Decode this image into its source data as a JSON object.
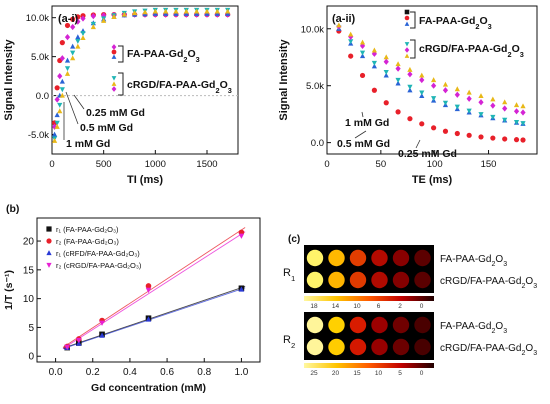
{
  "chart_data": [
    {
      "id": "a-i",
      "type": "scatter",
      "panel_label": "(a-i)",
      "xlabel": "TI (ms)",
      "ylabel": "Signal Intensity",
      "xlim": [
        0,
        1800
      ],
      "ylim": [
        -7500,
        11500
      ],
      "xticks": [
        0,
        500,
        1000,
        1500
      ],
      "yticks": [
        {
          "v": -5000,
          "t": "-5.0k"
        },
        {
          "v": 0,
          "t": "0.0"
        },
        {
          "v": 5000,
          "t": "5.0k"
        },
        {
          "v": 10000,
          "t": "10.0k"
        }
      ],
      "legend": [
        {
          "label": "FA-PAA-Gd",
          "sub": "2",
          "label2": "O",
          "sub2": "3"
        },
        {
          "label": "cRGD/FA-PAA-Gd",
          "sub": "2",
          "label2": "O",
          "sub2": "3"
        }
      ],
      "annotations": [
        "0.25 mM Gd",
        "0.5 mM Gd",
        "1 mM Gd"
      ],
      "series": [
        {
          "color": "#e8202a",
          "marker": "circle",
          "x": [
            25,
            50,
            75,
            100,
            150,
            200,
            250,
            300,
            400,
            500,
            600,
            700,
            800,
            900,
            1000,
            1100,
            1200,
            1300,
            1400,
            1500,
            1600,
            1700
          ],
          "y": [
            -3500,
            1000,
            4500,
            6800,
            9000,
            9800,
            10100,
            10250,
            10350,
            10400,
            10400,
            10400,
            10400,
            10400,
            10400,
            10400,
            10400,
            10400,
            10400,
            10400,
            10400,
            10400
          ]
        },
        {
          "color": "#d424d4",
          "marker": "diamond",
          "x": [
            25,
            50,
            75,
            100,
            150,
            200,
            250,
            300,
            400,
            500,
            600,
            700,
            800,
            900,
            1000,
            1100,
            1200,
            1300,
            1400,
            1500,
            1600,
            1700
          ],
          "y": [
            -4000,
            -500,
            2500,
            4800,
            7500,
            8800,
            9500,
            9900,
            10200,
            10300,
            10350,
            10400,
            10400,
            10400,
            10400,
            10400,
            10400,
            10400,
            10400,
            10400,
            10400,
            10400
          ]
        },
        {
          "color": "#2a63d6",
          "marker": "triangle",
          "x": [
            25,
            50,
            75,
            100,
            150,
            200,
            250,
            300,
            400,
            500,
            600,
            700,
            800,
            900,
            1000,
            1100,
            1200,
            1300,
            1400,
            1500,
            1600,
            1700
          ],
          "y": [
            -5000,
            -2500,
            0,
            1800,
            4500,
            6300,
            7500,
            8300,
            9300,
            9800,
            10100,
            10300,
            10400,
            10450,
            10500,
            10500,
            10500,
            10500,
            10500,
            10500,
            10500,
            10500
          ]
        },
        {
          "color": "#1fb5b5",
          "marker": "triangle-down",
          "x": [
            25,
            50,
            75,
            100,
            150,
            200,
            250,
            300,
            400,
            500,
            600,
            700,
            800,
            900,
            1000,
            1100,
            1200,
            1300,
            1400,
            1500,
            1600,
            1700
          ],
          "y": [
            -5500,
            -3500,
            -1200,
            800,
            3500,
            5500,
            7000,
            8000,
            9200,
            9900,
            10300,
            10600,
            10800,
            10900,
            11000,
            11000,
            11000,
            11000,
            11000,
            11000,
            11000,
            11000
          ]
        },
        {
          "color": "#e8b818",
          "marker": "triangle",
          "x": [
            25,
            50,
            75,
            100,
            150,
            200,
            250,
            300,
            400,
            500,
            600,
            700,
            800,
            900,
            1000,
            1100,
            1200,
            1300,
            1400,
            1500,
            1600,
            1700
          ],
          "y": [
            -5800,
            -4000,
            -2000,
            0,
            2800,
            4800,
            6300,
            7400,
            8800,
            9600,
            10100,
            10400,
            10600,
            10700,
            10800,
            10800,
            10800,
            10800,
            10800,
            10800,
            10800,
            10800
          ]
        }
      ]
    },
    {
      "id": "a-ii",
      "type": "scatter",
      "panel_label": "(a-ii)",
      "xlabel": "TE (ms)",
      "ylabel": "Signal Intensity",
      "xlim": [
        0,
        195
      ],
      "ylim": [
        -1000,
        12000
      ],
      "xticks": [
        0,
        50,
        100,
        150
      ],
      "yticks": [
        {
          "v": 0,
          "t": "0.0"
        },
        {
          "v": 5000,
          "t": "5.0k"
        },
        {
          "v": 10000,
          "t": "10.0k"
        }
      ],
      "legend": [
        {
          "label": "FA-PAA-Gd",
          "sub": "2",
          "label2": "O",
          "sub2": "3"
        },
        {
          "label": "cRGD/FA-PAA-Gd",
          "sub": "2",
          "label2": "O",
          "sub2": "3"
        }
      ],
      "annotations": [
        "1 mM Gd",
        "0.5 mM Gd",
        "0.25 mM Gd"
      ],
      "series": [
        {
          "color": "#e8202a",
          "marker": "circle",
          "x": [
            11,
            22,
            33,
            44,
            55,
            66,
            77,
            88,
            99,
            110,
            121,
            132,
            143,
            154,
            165,
            176,
            182
          ],
          "y": [
            9800,
            7600,
            5900,
            4600,
            3500,
            2700,
            2100,
            1650,
            1300,
            1000,
            800,
            640,
            500,
            400,
            320,
            260,
            230
          ]
        },
        {
          "color": "#2a63d6",
          "marker": "triangle",
          "x": [
            11,
            22,
            33,
            44,
            55,
            66,
            77,
            88,
            99,
            110,
            121,
            132,
            143,
            154,
            165,
            176,
            182
          ],
          "y": [
            10000,
            8700,
            7600,
            6700,
            5900,
            5200,
            4600,
            4100,
            3700,
            3300,
            2950,
            2650,
            2400,
            2150,
            1950,
            1750,
            1650
          ]
        },
        {
          "color": "#1fb5b5",
          "marker": "triangle-down",
          "x": [
            11,
            22,
            33,
            44,
            55,
            66,
            77,
            88,
            99,
            110,
            121,
            132,
            143,
            154,
            165,
            176,
            182
          ],
          "y": [
            10100,
            8900,
            7900,
            7000,
            6200,
            5500,
            4900,
            4400,
            3900,
            3500,
            3150,
            2800,
            2500,
            2250,
            2000,
            1800,
            1700
          ]
        },
        {
          "color": "#d424d4",
          "marker": "diamond",
          "x": [
            11,
            22,
            33,
            44,
            55,
            66,
            77,
            88,
            99,
            110,
            121,
            132,
            143,
            154,
            165,
            176,
            182
          ],
          "y": [
            10200,
            9300,
            8500,
            7800,
            7100,
            6500,
            6000,
            5500,
            5000,
            4600,
            4200,
            3850,
            3550,
            3250,
            3000,
            2750,
            2650
          ]
        },
        {
          "color": "#e8b818",
          "marker": "triangle",
          "x": [
            11,
            22,
            33,
            44,
            55,
            66,
            77,
            88,
            99,
            110,
            121,
            132,
            143,
            154,
            165,
            176,
            182
          ],
          "y": [
            10300,
            9500,
            8800,
            8100,
            7500,
            6900,
            6400,
            5900,
            5500,
            5100,
            4700,
            4400,
            4100,
            3800,
            3550,
            3300,
            3200
          ]
        }
      ]
    },
    {
      "id": "b",
      "type": "scatter",
      "panel_label": "(b)",
      "xlabel": "Gd concentration (mM)",
      "ylabel": "1/T (s⁻¹)",
      "xlim": [
        -0.1,
        1.1
      ],
      "ylim": [
        -1,
        24
      ],
      "xticks": [
        {
          "v": 0.0,
          "t": "0.0"
        },
        {
          "v": 0.2,
          "t": "0.2"
        },
        {
          "v": 0.4,
          "t": "0.4"
        },
        {
          "v": 0.6,
          "t": "0.6"
        },
        {
          "v": 0.8,
          "t": "0.8"
        },
        {
          "v": 1.0,
          "t": "1.0"
        }
      ],
      "yticks": [
        0,
        5,
        10,
        15,
        20
      ],
      "legend": [
        {
          "label": "r₁ (FA-PAA-Gd₂O₃)",
          "color": "#111111",
          "marker": "square"
        },
        {
          "label": "r₂ (FA-PAA-Gd₂O₃)",
          "color": "#e8202a",
          "marker": "circle"
        },
        {
          "label": "r₁ (cRFD/FA-PAA-Gd₂O₃)",
          "color": "#2a3ad6",
          "marker": "triangle"
        },
        {
          "label": "r₂ (cRGD/FA-PAA-Gd₂O₃)",
          "color": "#e820d4",
          "marker": "triangle-down"
        }
      ],
      "series": [
        {
          "name": "r1 (FA-PAA-Gd2O3)",
          "color": "#111111",
          "marker": "square",
          "x": [
            0.0625,
            0.125,
            0.25,
            0.5,
            1.0
          ],
          "y": [
            1.5,
            2.3,
            3.8,
            6.6,
            11.8
          ]
        },
        {
          "name": "r2 (FA-PAA-Gd2O3)",
          "color": "#e8202a",
          "marker": "circle",
          "x": [
            0.0625,
            0.125,
            0.25,
            0.5,
            1.0
          ],
          "y": [
            1.7,
            3.0,
            6.2,
            12.2,
            21.5
          ]
        },
        {
          "name": "r1 (cRFD/FA-PAA-Gd2O3)",
          "color": "#2a3ad6",
          "marker": "triangle",
          "x": [
            0.0625,
            0.125,
            0.25,
            0.5,
            1.0
          ],
          "y": [
            1.5,
            2.2,
            3.6,
            6.4,
            11.6
          ]
        },
        {
          "name": "r2 (cRGD/FA-PAA-Gd2O3)",
          "color": "#e820d4",
          "marker": "triangle-down",
          "x": [
            0.0625,
            0.125,
            0.25,
            0.5,
            1.0
          ],
          "y": [
            1.6,
            2.8,
            5.8,
            11.5,
            20.9
          ]
        }
      ]
    },
    {
      "id": "c",
      "type": "heatmap",
      "panel_label": "(c)",
      "groups": [
        {
          "label": "R",
          "sub": "1",
          "rows": [
            {
              "label": "FA-PAA-Gd",
              "sub": "2",
              "label2": "O",
              "sub2": "3",
              "colors": [
                "#fff36a",
                "#ffb800",
                "#e23d00",
                "#b40a00",
                "#880000",
                "#5c0000"
              ]
            },
            {
              "label": "cRGD/FA-PAA-Gd",
              "sub": "2",
              "label2": "O",
              "sub2": "3",
              "colors": [
                "#fff36a",
                "#ffb400",
                "#e03a00",
                "#b00a00",
                "#840000",
                "#5a0000"
              ]
            }
          ],
          "scale_ticks": [
            "18",
            "14",
            "10",
            "6",
            "2",
            "0"
          ]
        },
        {
          "label": "R",
          "sub": "2",
          "rows": [
            {
              "label": "FA-PAA-Gd",
              "sub": "2",
              "label2": "O",
              "sub2": "3",
              "colors": [
                "#fff59a",
                "#ffd000",
                "#d81c00",
                "#9c0000",
                "#700000",
                "#4a0000"
              ]
            },
            {
              "label": "cRGD/FA-PAA-Gd",
              "sub": "2",
              "label2": "O",
              "sub2": "3",
              "colors": [
                "#fff59a",
                "#ffcc00",
                "#d41800",
                "#980000",
                "#6c0000",
                "#480000"
              ]
            }
          ],
          "scale_ticks": [
            "25",
            "20",
            "15",
            "10",
            "5",
            "0"
          ]
        }
      ]
    }
  ]
}
